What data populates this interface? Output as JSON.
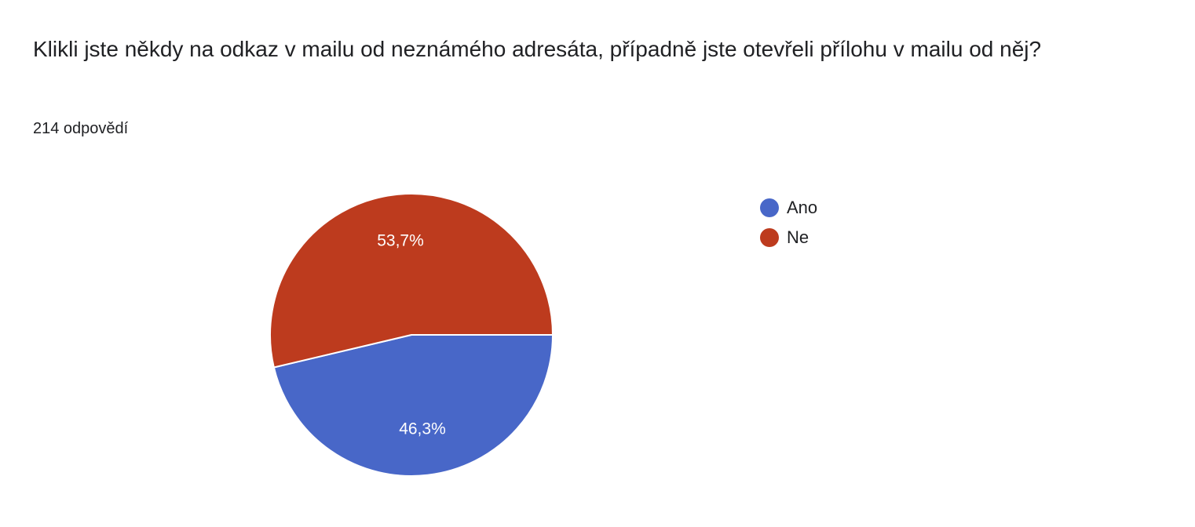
{
  "question": {
    "title": "Klikli jste někdy na odkaz v mailu od neznámého adresáta, případně jste otevřeli přílohu v mailu od něj?",
    "response_count": "214 odpovědí"
  },
  "chart_data": {
    "type": "pie",
    "title": "",
    "legend_position": "right",
    "slices": [
      {
        "label": "Ano",
        "value": 46.3,
        "display": "46,3%",
        "color": "#4867c8"
      },
      {
        "label": "Ne",
        "value": 53.7,
        "display": "53,7%",
        "color": "#bd3b1e"
      }
    ]
  },
  "legend": {
    "items": [
      {
        "label": "Ano",
        "color": "#4867c8"
      },
      {
        "label": "Ne",
        "color": "#bd3b1e"
      }
    ]
  }
}
